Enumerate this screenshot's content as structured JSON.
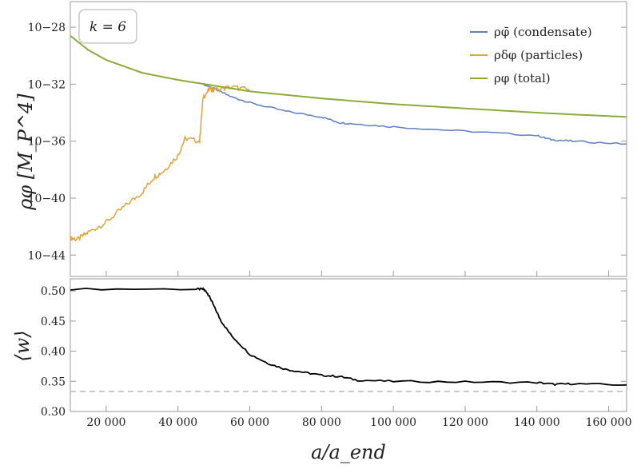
{
  "chart_data": [
    {
      "type": "line",
      "ylabel": "ρφ [M_P^4]",
      "yscale": "log",
      "ylim_log10": [
        -45.5,
        -26.2
      ],
      "xlim": [
        10000,
        165000
      ],
      "yticks": [
        {
          "log10": -28,
          "label": "10−28"
        },
        {
          "log10": -32,
          "label": "10−32"
        },
        {
          "log10": -36,
          "label": "10−36"
        },
        {
          "log10": -40,
          "label": "10−40"
        },
        {
          "log10": -44,
          "label": "10−44"
        }
      ],
      "annotation": "k = 6",
      "legend_position": "top-right",
      "series": [
        {
          "name": "ρφ̄ (condensate)",
          "color": "#5b7fc0",
          "x": [
            47000,
            50000,
            55000,
            60000,
            70000,
            80000,
            85000,
            90000,
            100000,
            120000,
            140000,
            144000,
            150000,
            165000
          ],
          "y_log10": [
            -32.0,
            -32.3,
            -32.9,
            -33.3,
            -33.9,
            -34.3,
            -34.7,
            -34.8,
            -35.0,
            -35.3,
            -35.6,
            -35.9,
            -36.0,
            -36.2
          ]
        },
        {
          "name": "ρδφ (particles)",
          "color": "#e3a233",
          "x": [
            10000,
            12000,
            15000,
            20000,
            25000,
            30000,
            33000,
            36000,
            40000,
            42000,
            46000,
            47000,
            49000,
            50000,
            55000,
            60000
          ],
          "y_log10": [
            -42.8,
            -42.9,
            -42.4,
            -41.7,
            -40.6,
            -39.6,
            -38.6,
            -38.1,
            -37.0,
            -35.8,
            -36.0,
            -32.9,
            -32.3,
            -32.4,
            -32.2,
            -32.4
          ]
        },
        {
          "name": "ρφ (total)",
          "color": "#8cac3a",
          "x": [
            10000,
            15000,
            20000,
            30000,
            40000,
            50000,
            60000,
            80000,
            100000,
            120000,
            140000,
            165000
          ],
          "y_log10": [
            -28.6,
            -29.6,
            -30.3,
            -31.2,
            -31.7,
            -32.1,
            -32.5,
            -33.0,
            -33.4,
            -33.7,
            -34.0,
            -34.3
          ]
        }
      ]
    },
    {
      "type": "line",
      "ylabel": "⟨w⟩",
      "xlabel": "a/a_end",
      "xlim": [
        10000,
        165000
      ],
      "ylim": [
        0.3,
        0.52
      ],
      "yticks": [
        "0.30",
        "0.35",
        "0.40",
        "0.45",
        "0.50"
      ],
      "xticks": [
        "20 000",
        "40 000",
        "60 000",
        "80 000",
        "100 000",
        "120 000",
        "140 000",
        "160 000"
      ],
      "xtick_values": [
        20000,
        40000,
        60000,
        80000,
        100000,
        120000,
        140000,
        160000
      ],
      "reference_line": {
        "y": 0.3333,
        "style": "dashed",
        "color": "#aaaaaa"
      },
      "series": [
        {
          "color": "#000000",
          "x": [
            10000,
            45000,
            47000,
            48000,
            49000,
            50000,
            52000,
            55000,
            60000,
            65000,
            70000,
            75000,
            80000,
            85000,
            90000,
            100000,
            120000,
            140000,
            145000,
            150000,
            165000
          ],
          "y": [
            0.503,
            0.503,
            0.503,
            0.498,
            0.488,
            0.475,
            0.45,
            0.425,
            0.395,
            0.38,
            0.37,
            0.365,
            0.36,
            0.358,
            0.352,
            0.35,
            0.349,
            0.348,
            0.345,
            0.346,
            0.344
          ]
        }
      ]
    }
  ]
}
